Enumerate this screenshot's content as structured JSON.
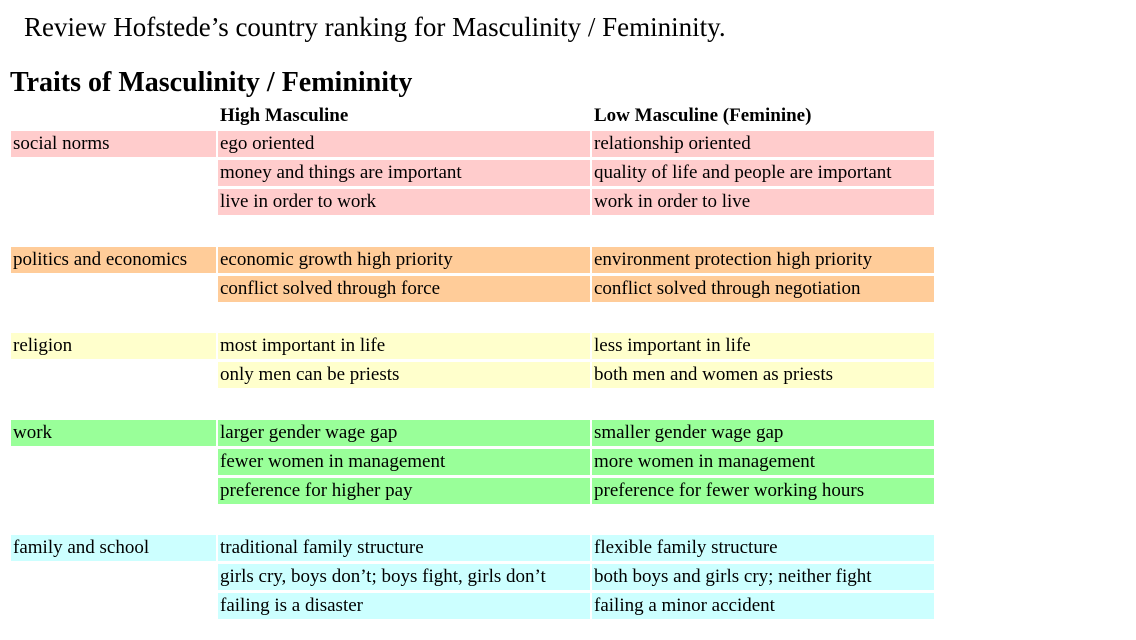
{
  "intro": "Review Hofstede’s country ranking for Masculinity / Femininity.",
  "heading": "Traits of Masculinity / Femininity",
  "columns": {
    "high": "High Masculine",
    "low": "Low Masculine (Feminine)"
  },
  "colors": {
    "social_norms": "#ffcccc",
    "politics_and_economics": "#ffcc99",
    "religion": "#ffffcc",
    "work": "#99ff99",
    "family_and_school": "#ccffff"
  },
  "groups": [
    {
      "category": "social norms",
      "rows": [
        {
          "high": "ego oriented",
          "low": "relationship oriented"
        },
        {
          "high": "money and things are important",
          "low": "quality of life and people are important"
        },
        {
          "high": "live in order to work",
          "low": "work in order to live"
        }
      ]
    },
    {
      "category": "politics and economics",
      "rows": [
        {
          "high": "economic growth high priority",
          "low": "environment protection high priority"
        },
        {
          "high": "conflict solved through force",
          "low": "conflict solved through negotiation"
        }
      ]
    },
    {
      "category": "religion",
      "rows": [
        {
          "high": "most important in life",
          "low": "less important in life"
        },
        {
          "high": "only men can be priests",
          "low": "both men and women as priests"
        }
      ]
    },
    {
      "category": "work",
      "rows": [
        {
          "high": "larger gender wage gap",
          "low": "smaller gender wage gap"
        },
        {
          "high": "fewer women in management",
          "low": "more women in management"
        },
        {
          "high": "preference for higher pay",
          "low": "preference for fewer working hours"
        }
      ]
    },
    {
      "category": "family and school",
      "rows": [
        {
          "high": "traditional family structure",
          "low": "flexible family structure"
        },
        {
          "high": "girls cry, boys don’t; boys fight, girls don’t",
          "low": "both boys and girls cry; neither fight"
        },
        {
          "high": "failing is a disaster",
          "low": "failing a minor accident"
        }
      ]
    }
  ]
}
